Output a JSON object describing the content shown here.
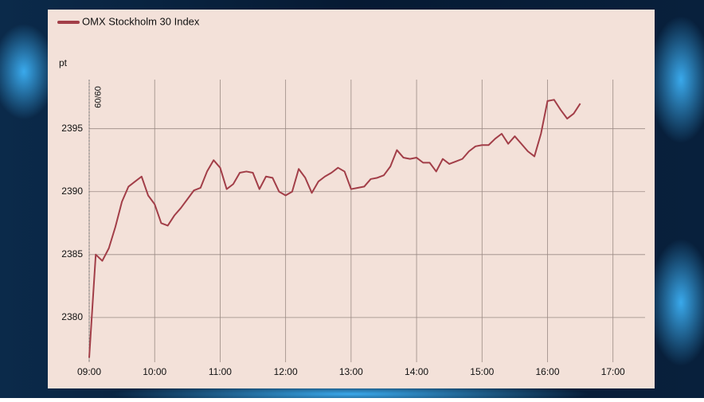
{
  "chart_data": {
    "type": "line",
    "y_label": "pt",
    "x": [
      9,
      9.1,
      9.2,
      9.3,
      9.4,
      9.5,
      9.6,
      9.7,
      9.8,
      9.9,
      10,
      10.1,
      10.2,
      10.3,
      10.4,
      10.5,
      10.6,
      10.7,
      10.8,
      10.9,
      11,
      11.1,
      11.2,
      11.3,
      11.4,
      11.5,
      11.6,
      11.7,
      11.8,
      11.9,
      12,
      12.1,
      12.2,
      12.3,
      12.4,
      12.5,
      12.6,
      12.7,
      12.8,
      12.9,
      13,
      13.1,
      13.2,
      13.3,
      13.4,
      13.5,
      13.6,
      13.7,
      13.8,
      13.9,
      14,
      14.1,
      14.2,
      14.3,
      14.4,
      14.5,
      14.6,
      14.7,
      14.8,
      14.9,
      15,
      15.1,
      15.2,
      15.3,
      15.4,
      15.5,
      15.6,
      15.7,
      15.8,
      15.9,
      16,
      16.1,
      16.2,
      16.3,
      16.4,
      16.5
    ],
    "series": [
      {
        "name": "OMX Stockholm 30 Index",
        "color": "#a23e48",
        "values": [
          2376.8,
          2385.0,
          2384.5,
          2385.5,
          2387.2,
          2389.2,
          2390.4,
          2390.8,
          2391.2,
          2389.7,
          2389.0,
          2387.5,
          2387.3,
          2388.1,
          2388.7,
          2389.4,
          2390.1,
          2390.3,
          2391.6,
          2392.5,
          2391.9,
          2390.2,
          2390.6,
          2391.5,
          2391.6,
          2391.5,
          2390.2,
          2391.2,
          2391.1,
          2390.0,
          2389.7,
          2390.0,
          2391.8,
          2391.1,
          2389.9,
          2390.8,
          2391.2,
          2391.5,
          2391.9,
          2391.6,
          2390.2,
          2390.3,
          2390.4,
          2391.0,
          2391.1,
          2391.3,
          2392.0,
          2393.3,
          2392.7,
          2392.6,
          2392.7,
          2392.3,
          2392.3,
          2391.6,
          2392.6,
          2392.2,
          2392.4,
          2392.6,
          2393.2,
          2393.6,
          2393.7,
          2393.7,
          2394.2,
          2394.6,
          2393.8,
          2394.4,
          2393.8,
          2393.2,
          2392.8,
          2394.6,
          2397.2,
          2397.3,
          2396.5,
          2395.8,
          2396.2,
          2397.0
        ]
      }
    ],
    "xlim": [
      9,
      17.49
    ],
    "xticks": [
      {
        "value": 9,
        "label": "09:00"
      },
      {
        "value": 10,
        "label": "10:00"
      },
      {
        "value": 11,
        "label": "11:00"
      },
      {
        "value": 12,
        "label": "12:00"
      },
      {
        "value": 13,
        "label": "13:00"
      },
      {
        "value": 14,
        "label": "14:00"
      },
      {
        "value": 15,
        "label": "15:00"
      },
      {
        "value": 16,
        "label": "16:00"
      },
      {
        "value": 17,
        "label": "17:00"
      }
    ],
    "ylim": [
      2376.45,
      2398.9
    ],
    "yticks": [
      2380,
      2385,
      2390,
      2395
    ],
    "grid": true,
    "annotations": [
      {
        "x": 9,
        "text": "09/09"
      }
    ]
  }
}
